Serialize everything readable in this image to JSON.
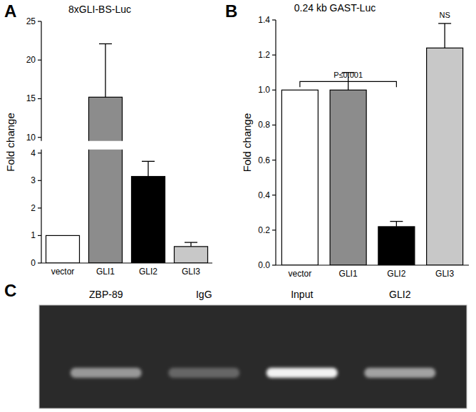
{
  "chart_data": [
    {
      "panel": "A",
      "type": "bar",
      "title": "8xGLI-BS-Luc",
      "y_label": "Fold change",
      "categories": [
        "vector",
        "GLI1",
        "GLI2",
        "GLI3"
      ],
      "values": [
        1,
        15.2,
        3.15,
        0.6
      ],
      "errors": [
        null,
        6.9,
        0.55,
        0.15
      ],
      "colors": [
        "#ffffff",
        "#8c8c8c",
        "#000000",
        "#c8c8c8"
      ],
      "ylim": [
        0,
        25
      ],
      "yticks": [
        0,
        1,
        2,
        3,
        4,
        10,
        15,
        20,
        25
      ],
      "axis_break": [
        4,
        10
      ]
    },
    {
      "panel": "B",
      "type": "bar",
      "title": "0.24 kb GAST-Luc",
      "y_label": "Fold change",
      "categories": [
        "vector",
        "GLI1",
        "GLI2",
        "GLI3"
      ],
      "values": [
        1,
        1,
        0.22,
        1.24
      ],
      "errors": [
        null,
        0.1,
        0.03,
        0.14
      ],
      "colors": [
        "#ffffff",
        "#8c8c8c",
        "#000000",
        "#c8c8c8"
      ],
      "ylim": [
        0,
        1.4
      ],
      "yticks": [
        {
          "value": 0,
          "label": "0.0"
        },
        {
          "value": 0.2,
          "label": "0.2"
        },
        {
          "value": 0.4,
          "label": "0.4"
        },
        {
          "value": 0.6,
          "label": "0.6"
        },
        {
          "value": 0.8,
          "label": "0.8"
        },
        {
          "value": 1,
          "label": "1.0"
        },
        {
          "value": 1.2,
          "label": "1.2"
        },
        {
          "value": 1.4,
          "label": "1.4"
        }
      ],
      "annotations": [
        {
          "text": "P≤0.001",
          "from": 0,
          "to": 2
        },
        {
          "text": "NS",
          "at": 3
        }
      ]
    },
    {
      "panel": "C",
      "type": "gel",
      "categories": [
        "ZBP-89",
        "IgG",
        "Input",
        "GLI2"
      ],
      "values": [
        0.55,
        0.3,
        1.0,
        0.6
      ]
    }
  ]
}
